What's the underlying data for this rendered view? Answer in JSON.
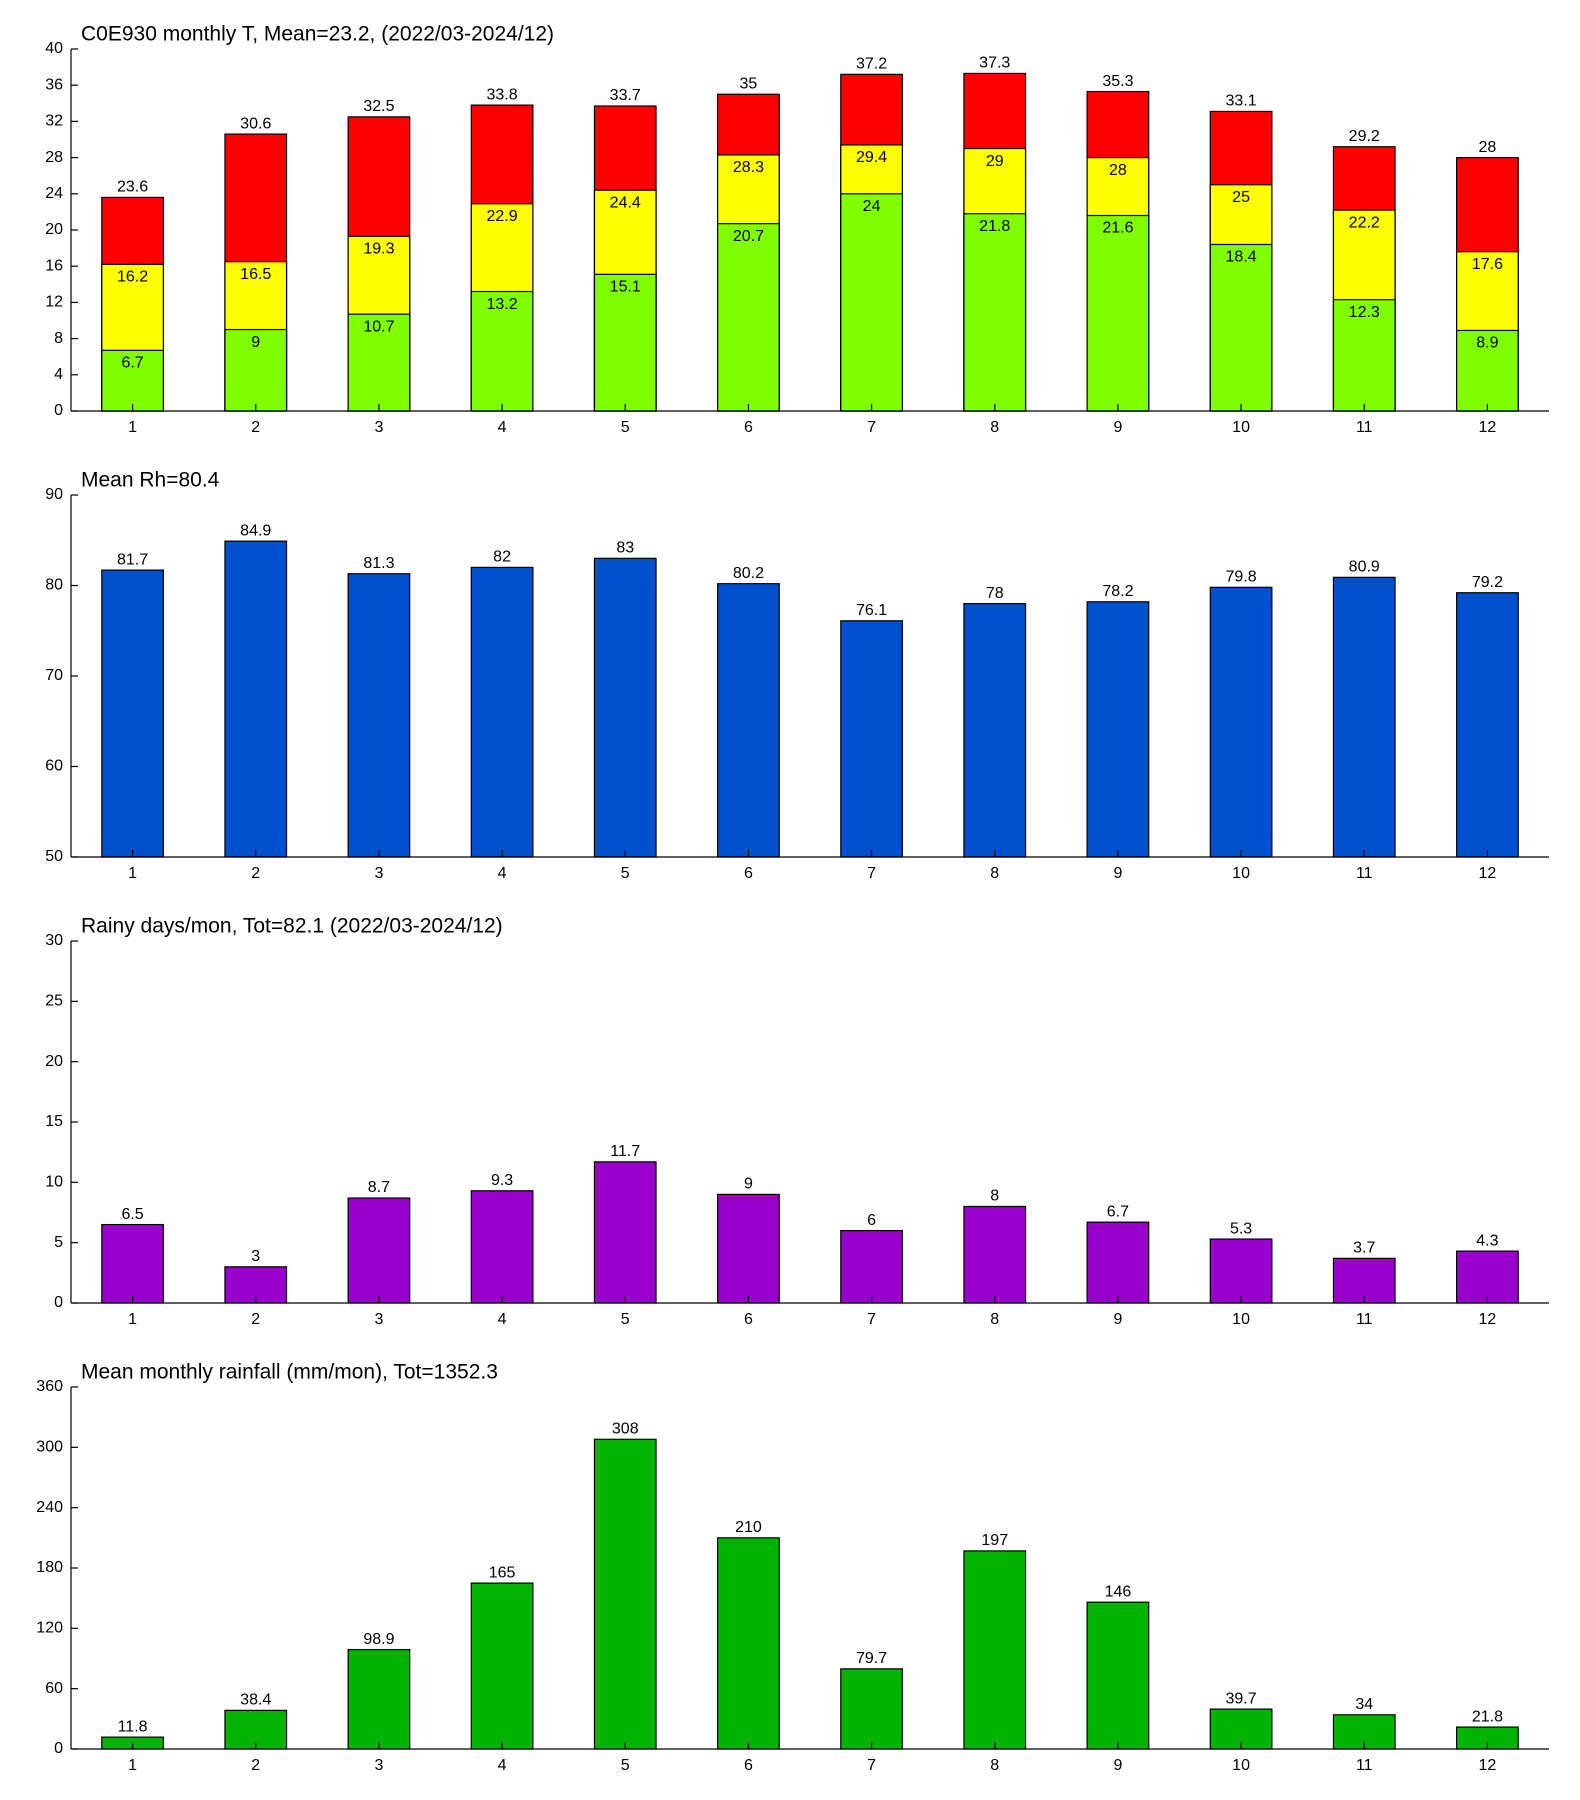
{
  "chart_data": [
    {
      "type": "bar",
      "title": "C0E930 monthly T, Mean=23.2, (2022/03-2024/12)",
      "categories": [
        "1",
        "2",
        "3",
        "4",
        "5",
        "6",
        "7",
        "8",
        "9",
        "10",
        "11",
        "12"
      ],
      "series": [
        {
          "color": "#80ff00",
          "values": [
            6.7,
            9,
            10.7,
            13.2,
            15.1,
            20.7,
            24,
            21.8,
            21.6,
            18.4,
            12.3,
            8.9
          ]
        },
        {
          "color": "#ffff00",
          "values": [
            16.2,
            16.5,
            19.3,
            22.9,
            24.4,
            28.3,
            29.4,
            29,
            28,
            25,
            22.2,
            17.6
          ]
        },
        {
          "color": "#ff0000",
          "values": [
            23.6,
            30.6,
            32.5,
            33.8,
            33.7,
            35,
            37.2,
            37.3,
            35.3,
            33.1,
            29.2,
            28
          ]
        }
      ],
      "ylim": [
        0,
        40
      ],
      "yticks": [
        0,
        4,
        8,
        12,
        16,
        20,
        24,
        28,
        32,
        36,
        40
      ]
    },
    {
      "type": "bar",
      "title": "Mean Rh=80.4",
      "categories": [
        "1",
        "2",
        "3",
        "4",
        "5",
        "6",
        "7",
        "8",
        "9",
        "10",
        "11",
        "12"
      ],
      "series": [
        {
          "color": "#0050d0",
          "values": [
            81.7,
            84.9,
            81.3,
            82,
            83,
            80.2,
            76.1,
            78,
            78.2,
            79.8,
            80.9,
            79.2
          ]
        }
      ],
      "ylim": [
        50,
        90
      ],
      "yticks": [
        50,
        60,
        70,
        80,
        90
      ]
    },
    {
      "type": "bar",
      "title": "Rainy days/mon, Tot=82.1 (2022/03-2024/12)",
      "categories": [
        "1",
        "2",
        "3",
        "4",
        "5",
        "6",
        "7",
        "8",
        "9",
        "10",
        "11",
        "12"
      ],
      "series": [
        {
          "color": "#9900cc",
          "values": [
            6.5,
            3,
            8.7,
            9.3,
            11.7,
            9,
            6,
            8,
            6.7,
            5.3,
            3.7,
            4.3
          ]
        }
      ],
      "ylim": [
        0,
        30
      ],
      "yticks": [
        0,
        5,
        10,
        15,
        20,
        25,
        30
      ]
    },
    {
      "type": "bar",
      "title": "Mean monthly rainfall (mm/mon), Tot=1352.3",
      "categories": [
        "1",
        "2",
        "3",
        "4",
        "5",
        "6",
        "7",
        "8",
        "9",
        "10",
        "11",
        "12"
      ],
      "series": [
        {
          "color": "#00b400",
          "values": [
            11.8,
            38.4,
            98.9,
            165,
            308,
            210,
            79.7,
            197,
            146,
            39.7,
            34,
            21.8
          ]
        }
      ],
      "ylim": [
        0,
        360
      ],
      "yticks": [
        0,
        60,
        120,
        180,
        240,
        300,
        360
      ]
    }
  ]
}
